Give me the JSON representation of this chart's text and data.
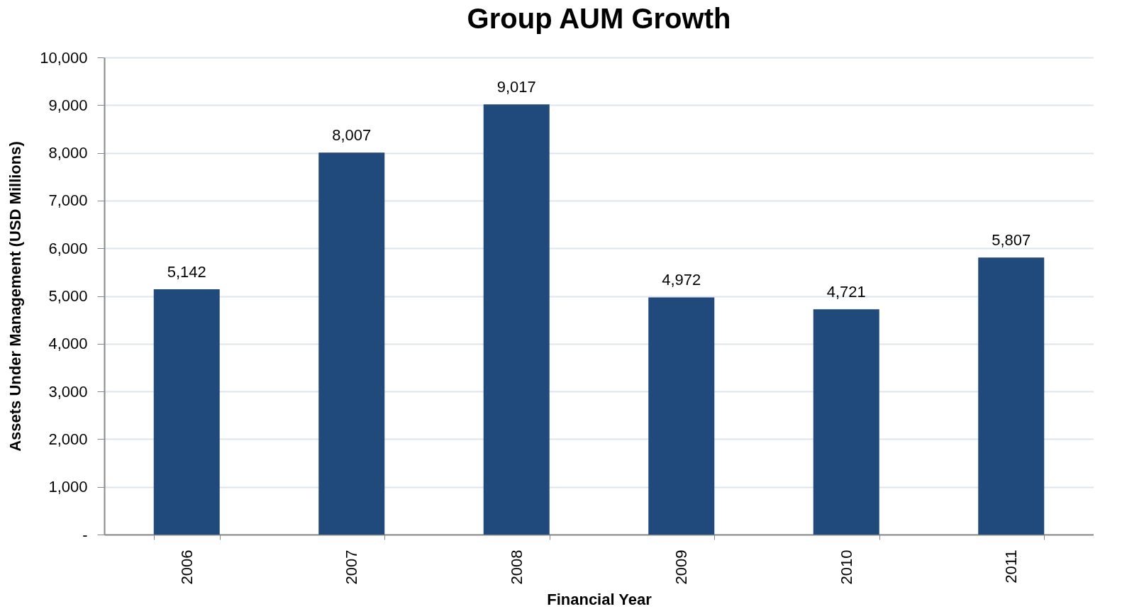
{
  "chart_data": {
    "type": "bar",
    "title": "Group AUM Growth",
    "xlabel": "Financial Year",
    "ylabel": "Assets Under Management (USD Millions)",
    "categories": [
      "2006",
      "2007",
      "2008",
      "2009",
      "2010",
      "2011"
    ],
    "values": [
      5142,
      8007,
      9017,
      4972,
      4721,
      5807
    ],
    "value_labels": [
      "5,142",
      "8,007",
      "9,017",
      "4,972",
      "4,721",
      "5,807"
    ],
    "color": "#204a7b",
    "ylim": [
      0,
      10000
    ],
    "yticks": [
      {
        "value": 0,
        "label": "-"
      },
      {
        "value": 1000,
        "label": "1,000"
      },
      {
        "value": 2000,
        "label": "2,000"
      },
      {
        "value": 3000,
        "label": "3,000"
      },
      {
        "value": 4000,
        "label": "4,000"
      },
      {
        "value": 5000,
        "label": "5,000"
      },
      {
        "value": 6000,
        "label": "6,000"
      },
      {
        "value": 7000,
        "label": "7,000"
      },
      {
        "value": 8000,
        "label": "8,000"
      },
      {
        "value": 9000,
        "label": "9,000"
      },
      {
        "value": 10000,
        "label": "10,000"
      }
    ],
    "grid": "y"
  }
}
